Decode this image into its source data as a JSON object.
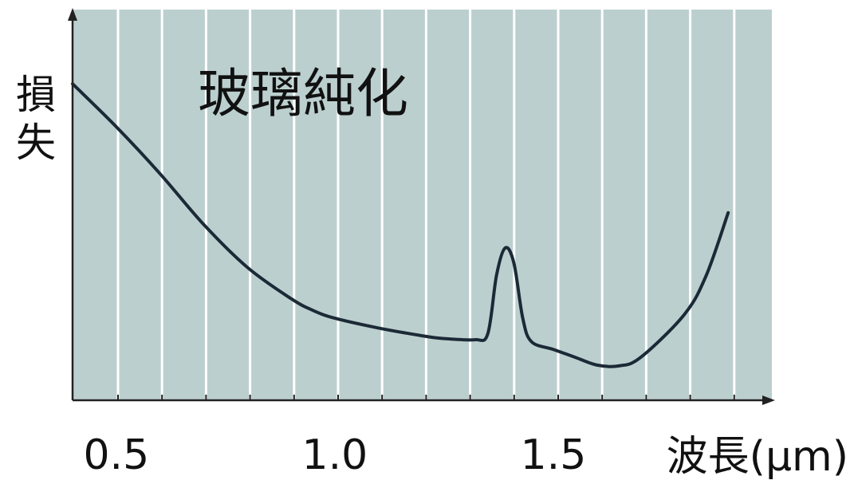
{
  "chart_data": {
    "type": "line",
    "title": "玻璃純化",
    "ylabel": "損失",
    "xlabel": "波長(μm)",
    "x_ticks": [
      "0.5",
      "1.0",
      "1.5"
    ],
    "y_tick_labels": "none",
    "xlim": [
      0.4,
      2.0
    ],
    "ylim": [
      0,
      1
    ],
    "grid": "vertical",
    "series": [
      {
        "values": [
          [
            0.4,
            0.81
          ],
          [
            0.5,
            0.7
          ],
          [
            0.6,
            0.58
          ],
          [
            0.7,
            0.45
          ],
          [
            0.8,
            0.34
          ],
          [
            0.9,
            0.26
          ],
          [
            0.95,
            0.23
          ],
          [
            1.0,
            0.21
          ],
          [
            1.1,
            0.185
          ],
          [
            1.2,
            0.165
          ],
          [
            1.25,
            0.158
          ],
          [
            1.32,
            0.155
          ],
          [
            1.35,
            0.17
          ],
          [
            1.37,
            0.32
          ],
          [
            1.39,
            0.39
          ],
          [
            1.41,
            0.35
          ],
          [
            1.43,
            0.21
          ],
          [
            1.45,
            0.15
          ],
          [
            1.5,
            0.13
          ],
          [
            1.55,
            0.11
          ],
          [
            1.6,
            0.09
          ],
          [
            1.65,
            0.088
          ],
          [
            1.7,
            0.11
          ],
          [
            1.8,
            0.22
          ],
          [
            1.85,
            0.32
          ],
          [
            1.9,
            0.48
          ]
        ]
      }
    ],
    "colors": {
      "plot_bg": "#bccfcf",
      "grid": "#ffffff",
      "line": "#1b2a36",
      "axis": "#222222"
    }
  }
}
